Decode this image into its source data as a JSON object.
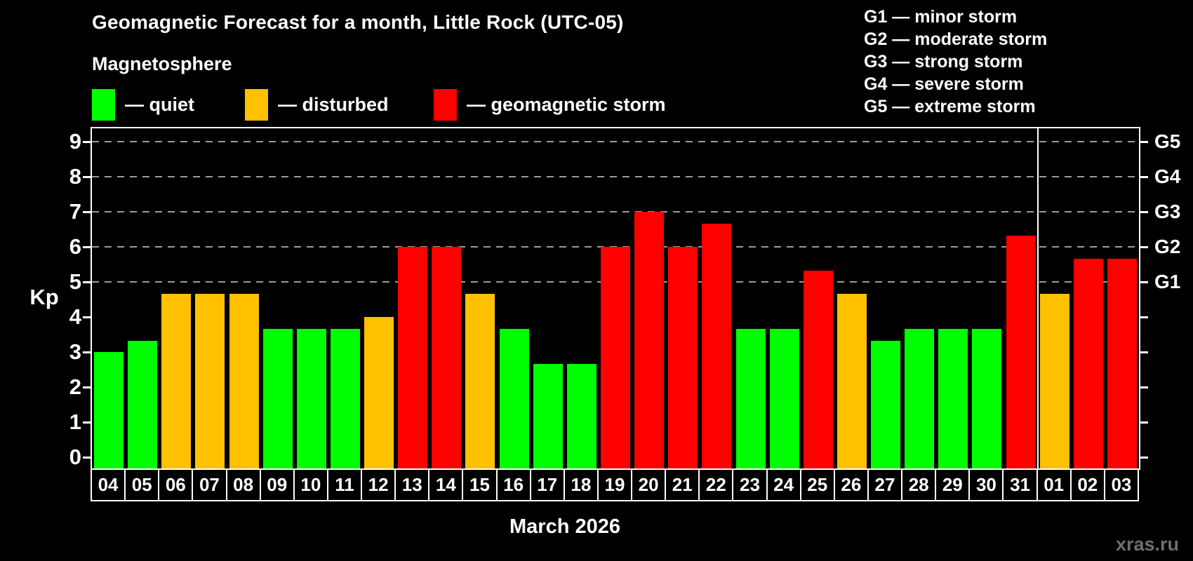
{
  "header": {
    "title": "Geomagnetic Forecast for a month, Little Rock (UTC-05)",
    "subtitle": "Magnetosphere"
  },
  "legend": {
    "items": [
      {
        "key": "quiet",
        "label": "— quiet",
        "color": "#00ff00"
      },
      {
        "key": "disturbed",
        "label": "— disturbed",
        "color": "#ffc000"
      },
      {
        "key": "storm",
        "label": "— geomagnetic storm",
        "color": "#ff0000"
      }
    ]
  },
  "g_legend": {
    "items": [
      "G1 — minor storm",
      "G2 — moderate storm",
      "G3 — strong storm",
      "G4 — severe storm",
      "G5 — extreme storm"
    ]
  },
  "footer": {
    "watermark": "xras.ru"
  },
  "chart_data": {
    "type": "bar",
    "title": "Geomagnetic Forecast for a month, Little Rock (UTC-05)",
    "subtitle": "Magnetosphere",
    "ylabel": "Kp",
    "xlabel": "March 2026",
    "ylim": [
      0,
      9.3
    ],
    "yticks": [
      0,
      1,
      2,
      3,
      4,
      5,
      6,
      7,
      8,
      9
    ],
    "grid": "horizontal dashed lines only at Kp 5-9",
    "grid_kp": [
      5,
      6,
      7,
      8,
      9
    ],
    "legend_position": "top-left",
    "right_axis_labels": [
      {
        "kp": 5,
        "label": "G1"
      },
      {
        "kp": 6,
        "label": "G2"
      },
      {
        "kp": 7,
        "label": "G3"
      },
      {
        "kp": 8,
        "label": "G4"
      },
      {
        "kp": 9,
        "label": "G5"
      }
    ],
    "categories": [
      "04",
      "05",
      "06",
      "07",
      "08",
      "09",
      "10",
      "11",
      "12",
      "13",
      "14",
      "15",
      "16",
      "17",
      "18",
      "19",
      "20",
      "21",
      "22",
      "23",
      "24",
      "25",
      "26",
      "27",
      "28",
      "29",
      "30",
      "31",
      "01",
      "02",
      "03"
    ],
    "values": [
      3.0,
      3.33,
      4.67,
      4.67,
      4.67,
      3.67,
      3.67,
      3.67,
      4.0,
      6.0,
      6.0,
      4.67,
      3.67,
      2.67,
      2.67,
      6.0,
      7.0,
      6.0,
      6.67,
      3.67,
      3.67,
      5.33,
      4.67,
      3.33,
      3.67,
      3.67,
      3.67,
      6.33,
      4.67,
      5.67,
      5.67
    ],
    "statuses": [
      "quiet",
      "quiet",
      "disturbed",
      "disturbed",
      "disturbed",
      "quiet",
      "quiet",
      "quiet",
      "disturbed",
      "storm",
      "storm",
      "disturbed",
      "quiet",
      "quiet",
      "quiet",
      "storm",
      "storm",
      "storm",
      "storm",
      "quiet",
      "quiet",
      "storm",
      "disturbed",
      "quiet",
      "quiet",
      "quiet",
      "quiet",
      "storm",
      "disturbed",
      "storm",
      "storm"
    ],
    "status_colors": {
      "quiet": "#00ff00",
      "disturbed": "#ffc000",
      "storm": "#ff0000"
    },
    "month_separator_after": "31"
  }
}
